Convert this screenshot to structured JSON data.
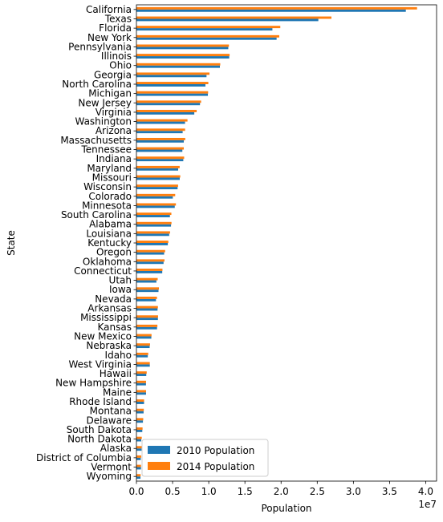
{
  "chart_data": {
    "type": "bar",
    "orientation": "horizontal",
    "title": "",
    "xlabel": "Population",
    "ylabel": "State",
    "x_offset_text": "1e7",
    "xlim": [
      0,
      41500000
    ],
    "xticks": [
      0,
      5000000,
      10000000,
      15000000,
      20000000,
      25000000,
      30000000,
      35000000,
      40000000
    ],
    "xtick_labels": [
      "0.0",
      "0.5",
      "1.0",
      "1.5",
      "2.0",
      "2.5",
      "3.0",
      "3.5",
      "4.0"
    ],
    "grid": false,
    "legend_position": "lower-left",
    "categories": [
      "California",
      "Texas",
      "Florida",
      "New York",
      "Pennsylvania",
      "Illinois",
      "Ohio",
      "Georgia",
      "North Carolina",
      "Michigan",
      "New Jersey",
      "Virginia",
      "Washington",
      "Arizona",
      "Massachusetts",
      "Tennessee",
      "Indiana",
      "Maryland",
      "Missouri",
      "Wisconsin",
      "Colorado",
      "Minnesota",
      "South Carolina",
      "Alabama",
      "Louisiana",
      "Kentucky",
      "Oregon",
      "Oklahoma",
      "Connecticut",
      "Utah",
      "Iowa",
      "Nevada",
      "Arkansas",
      "Mississippi",
      "Kansas",
      "New Mexico",
      "Nebraska",
      "Idaho",
      "West Virginia",
      "Hawaii",
      "New Hampshire",
      "Maine",
      "Rhode Island",
      "Montana",
      "Delaware",
      "South Dakota",
      "North Dakota",
      "Alaska",
      "District of Columbia",
      "Vermont",
      "Wyoming"
    ],
    "series": [
      {
        "name": "2010 Population",
        "color": "#1f77b4",
        "values": [
          37250000,
          25150000,
          18800000,
          19380000,
          12700000,
          12830000,
          11540000,
          9690000,
          9540000,
          9880000,
          8790000,
          8000000,
          6720000,
          6390000,
          6550000,
          6350000,
          6480000,
          5770000,
          5990000,
          5690000,
          5030000,
          5300000,
          4630000,
          4780000,
          4530000,
          4340000,
          3830000,
          3750000,
          3570000,
          2760000,
          3050000,
          2700000,
          2920000,
          2970000,
          2850000,
          2060000,
          1830000,
          1570000,
          1850000,
          1360000,
          1320000,
          1330000,
          1050000,
          990000,
          900000,
          810000,
          670000,
          710000,
          600000,
          630000,
          560000
        ]
      },
      {
        "name": "2014 Population",
        "color": "#ff7f0e",
        "values": [
          38800000,
          26960000,
          19890000,
          19750000,
          12790000,
          12880000,
          11590000,
          10100000,
          9940000,
          9910000,
          8940000,
          8330000,
          7060000,
          6730000,
          6750000,
          6550000,
          6600000,
          5980000,
          6060000,
          5760000,
          5360000,
          5460000,
          4830000,
          4850000,
          4650000,
          4410000,
          3970000,
          3880000,
          3600000,
          2940000,
          3110000,
          2840000,
          2970000,
          2990000,
          2900000,
          2090000,
          1880000,
          1630000,
          1850000,
          1420000,
          1330000,
          1330000,
          1060000,
          1020000,
          940000,
          850000,
          740000,
          740000,
          660000,
          630000,
          580000
        ]
      }
    ]
  }
}
